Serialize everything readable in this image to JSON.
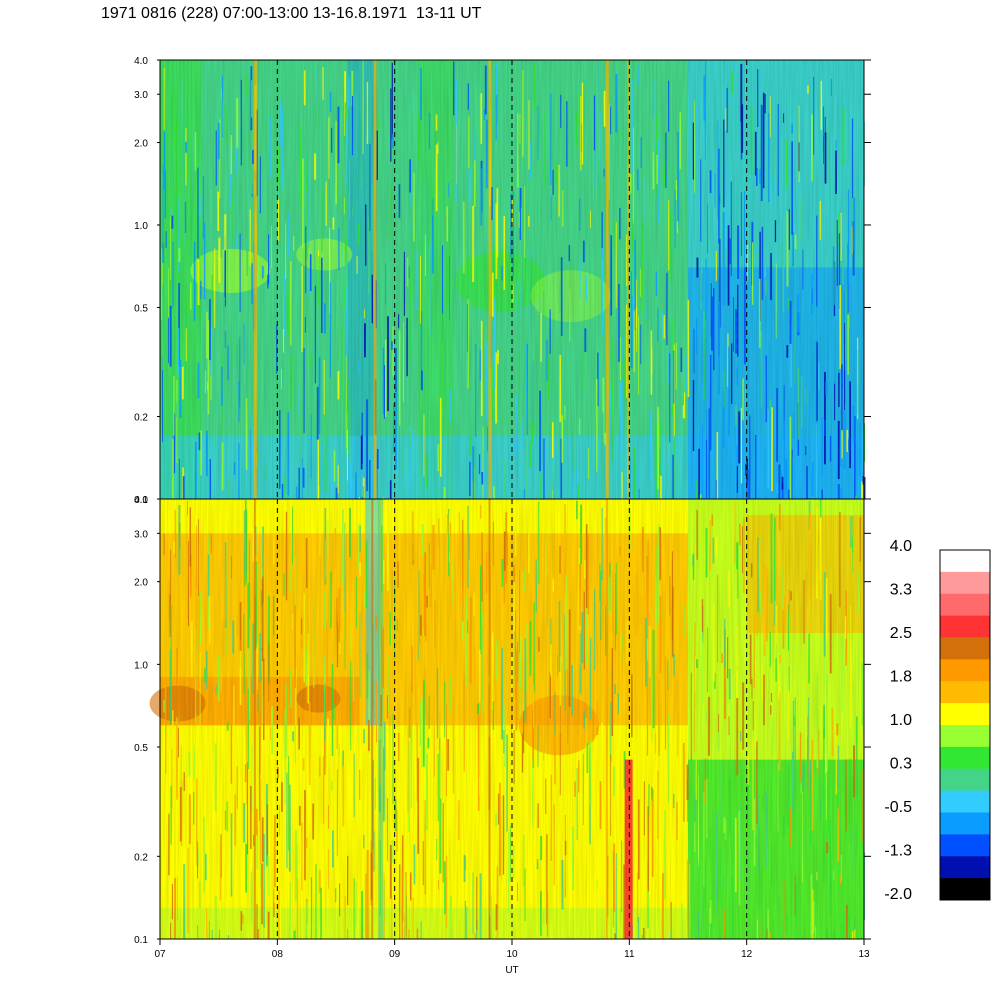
{
  "title": "1971 0816 (228) 07:00-13:00 13-16.8.1971  13-11 UT",
  "chart_data": {
    "type": "heatmap",
    "x_label": "UT",
    "x_ticks": [
      "07",
      "08",
      "09",
      "10",
      "11",
      "12",
      "13"
    ],
    "x_range": [
      7,
      13
    ],
    "y_scale": "log",
    "y_range": [
      0.1,
      4.0
    ],
    "y_ticks": [
      "0.1",
      "0.2",
      "0.5",
      "1.0",
      "2.0",
      "3.0",
      "4.0"
    ],
    "y_tick_values": [
      0.1,
      0.2,
      0.5,
      1.0,
      2.0,
      3.0,
      4.0
    ],
    "vertical_dashed_lines_at": [
      8,
      9,
      10,
      11,
      12
    ],
    "colorbar": {
      "labels": [
        "4.0",
        "3.3",
        "2.5",
        "1.8",
        "1.0",
        "0.3",
        "-0.5",
        "-1.3",
        "-2.0"
      ],
      "colors": [
        "#ffffff",
        "#ff9a9a",
        "#ff6a6a",
        "#ff3333",
        "#d4700a",
        "#ff9900",
        "#ffbb00",
        "#ffff00",
        "#99ff33",
        "#33e633",
        "#44d488",
        "#33ccff",
        "#0a9cff",
        "#0050ff",
        "#0010b0",
        "#000000"
      ]
    },
    "panels": [
      {
        "name": "top",
        "description_level": "low",
        "dominant": "green-cyan-blue"
      },
      {
        "name": "bottom",
        "description_level": "high",
        "dominant": "yellow-orange"
      }
    ]
  }
}
